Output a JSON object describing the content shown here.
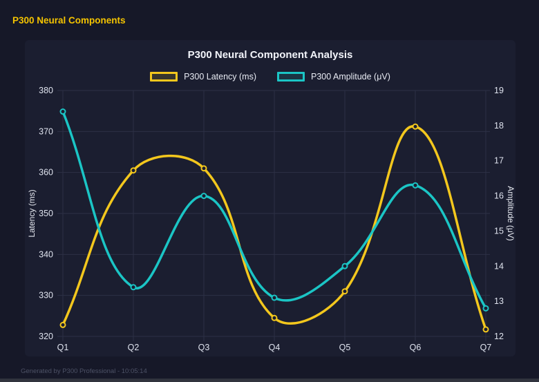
{
  "page": {
    "header_title": "P300 Neural Components",
    "footer": "Generated by P300 Professional - 10:05:14"
  },
  "colors": {
    "page_bg": "#161828",
    "card_bg": "#1b1e30",
    "grid": "#2c3046",
    "tick_text": "#dfe3ee",
    "axis_title_text": "#e6e9f0",
    "header_text": "#f5c400",
    "footer_text": "#4d5266",
    "latency_series": "#f3c71d",
    "amplitude_series": "#1bc5c5"
  },
  "chart_data": {
    "type": "line",
    "title": "P300 Neural Component Analysis",
    "categories": [
      "Q1",
      "Q2",
      "Q3",
      "Q4",
      "Q5",
      "Q6",
      "Q7"
    ],
    "series": [
      {
        "name": "P300 Latency (ms)",
        "axis": "left",
        "color": "#f3c71d",
        "values": [
          322.8,
          360.5,
          361,
          324.5,
          331,
          371.2,
          321.7
        ]
      },
      {
        "name": "P300 Amplitude (μV)",
        "axis": "right",
        "color": "#1bc5c5",
        "values": [
          18.4,
          13.4,
          16,
          13.1,
          14,
          16.3,
          12.8
        ]
      }
    ],
    "left_axis": {
      "label": "Latency (ms)",
      "min": 320,
      "max": 380,
      "ticks": [
        320,
        330,
        340,
        350,
        360,
        370,
        380
      ]
    },
    "right_axis": {
      "label": "Amplitude (μV)",
      "min": 12,
      "max": 19,
      "ticks": [
        12,
        13,
        14,
        15,
        16,
        17,
        18,
        19
      ]
    },
    "grid": true,
    "legend_position": "top",
    "line_tension": 0.4
  }
}
